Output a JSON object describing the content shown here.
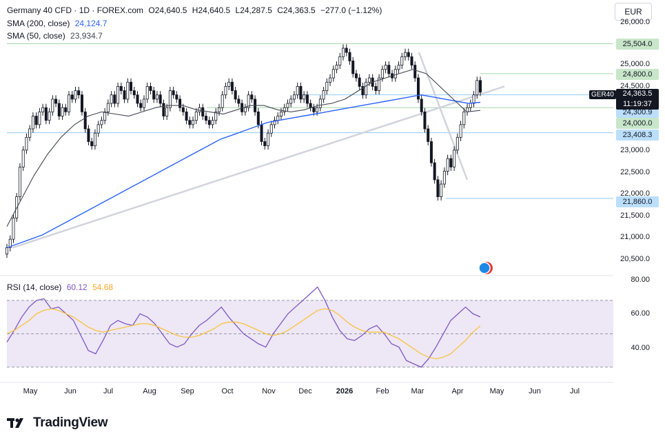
{
  "header": {
    "symbol_line": "Germany 40 CFD · 1D · FOREX.com",
    "open": "O24,640.5",
    "high": "H24,640.5",
    "low": "L24,287.5",
    "close": "C24,363.5",
    "change": "−277.0 (−1.12%)"
  },
  "indicators": {
    "sma200_label": "SMA (200, close)",
    "sma200_value": "24,124.7",
    "sma50_label": "SMA (50, close)",
    "sma50_value": "23,934.7",
    "rsi_label": "RSI (14, close)",
    "rsi_value": "60.12",
    "rsi_ma_value": "54.68"
  },
  "currency_button": "EUR",
  "price_axis": {
    "ticks": [
      "26,000.0",
      "25,000.0",
      "24,500.0",
      "23,000.0",
      "22,500.0",
      "22,000.0",
      "21,500.0",
      "21,000.0",
      "20,500.0"
    ],
    "levels": [
      {
        "label": "25,504.0",
        "color": "#c8e6c9"
      },
      {
        "label": "24,800.0",
        "color": "#c8e6c9"
      },
      {
        "label": "24,300.9",
        "color": "#bbdefb"
      },
      {
        "label": "24,000.0",
        "color": "#c8e6c9"
      },
      {
        "label": "23,408.3",
        "color": "#bbdefb"
      },
      {
        "label": "21,860.0",
        "color": "#bbdefb"
      }
    ],
    "instrument_tag": "GER40",
    "current_price": "24,363.5",
    "countdown": "11:19:37"
  },
  "rsi_axis": {
    "ticks": [
      "80.00",
      "60.00",
      "40.00"
    ]
  },
  "time_axis": {
    "labels": [
      {
        "text": "May",
        "bold": false
      },
      {
        "text": "Jun",
        "bold": false
      },
      {
        "text": "Jul",
        "bold": false
      },
      {
        "text": "Aug",
        "bold": false
      },
      {
        "text": "Sep",
        "bold": false
      },
      {
        "text": "Oct",
        "bold": false
      },
      {
        "text": "Nov",
        "bold": false
      },
      {
        "text": "Dec",
        "bold": false
      },
      {
        "text": "2026",
        "bold": true
      },
      {
        "text": "Feb",
        "bold": false
      },
      {
        "text": "Mar",
        "bold": false
      },
      {
        "text": "Apr",
        "bold": false
      },
      {
        "text": "May",
        "bold": false
      },
      {
        "text": "Jun",
        "bold": false
      },
      {
        "text": "Jul",
        "bold": false
      }
    ]
  },
  "brand": "TradingView",
  "colors": {
    "sma200": "#2962ff",
    "sma50": "#434651",
    "rsi": "#7e57c2",
    "rsi_ma": "#fbc02d",
    "rsi_band": "#ede7f6",
    "trendline": "#d1d4dc",
    "candle": "#131722"
  },
  "chart_data": {
    "type": "candlestick",
    "price_ylim": [
      20400,
      26000
    ],
    "rsi_ylim": [
      25,
      82
    ],
    "rsi_levels": [
      70,
      50,
      30
    ],
    "horizontal_levels": [
      25504.0,
      24800.0,
      24300.9,
      24000.0,
      23408.3,
      21860.0
    ],
    "close": [
      20700,
      20900,
      21400,
      21900,
      22600,
      23000,
      23300,
      23500,
      23800,
      23600,
      23900,
      24000,
      23700,
      23900,
      24200,
      24100,
      23800,
      24000,
      23900,
      24300,
      24200,
      24400,
      24300,
      23900,
      23500,
      23200,
      23100,
      23400,
      23600,
      23700,
      23900,
      24100,
      24300,
      24100,
      24500,
      24400,
      24200,
      24600,
      24400,
      24300,
      24100,
      24000,
      24200,
      24500,
      24400,
      24200,
      24300,
      24100,
      23800,
      24000,
      24400,
      24300,
      24200,
      24000,
      23900,
      23700,
      23600,
      23700,
      23900,
      24000,
      23800,
      23700,
      23600,
      23700,
      23900,
      24000,
      24300,
      24500,
      24600,
      24400,
      24200,
      24100,
      23900,
      24000,
      24300,
      24200,
      23900,
      23600,
      23200,
      23100,
      23400,
      23600,
      23700,
      23800,
      23900,
      24000,
      24100,
      24200,
      24300,
      24500,
      24200,
      24300,
      24100,
      24000,
      23900,
      24000,
      24200,
      24400,
      24600,
      24700,
      24900,
      25000,
      25200,
      25400,
      25300,
      25100,
      24800,
      24700,
      24500,
      24300,
      24600,
      24700,
      24500,
      24400,
      24700,
      24900,
      25000,
      24800,
      24700,
      24900,
      25000,
      25200,
      25300,
      25200,
      25000,
      24700,
      24200,
      23900,
      23500,
      23200,
      22700,
      22300,
      21900,
      22200,
      22500,
      22800,
      22600,
      23000,
      23300,
      23600,
      23900,
      24000,
      24100,
      24300,
      24640,
      24363.5
    ],
    "sma200": [
      20700,
      20800,
      20900,
      21000,
      21150,
      21300,
      21450,
      21600,
      21750,
      21900,
      22050,
      22200,
      22350,
      22500,
      22650,
      22800,
      22950,
      23100,
      23250,
      23350,
      23450,
      23550,
      23650,
      23700,
      23750,
      23800,
      23850,
      23900,
      23950,
      24000,
      24050,
      24100,
      24150,
      24200,
      24250,
      24300,
      24250,
      24200,
      24150,
      24100,
      24124.7
    ],
    "sma50": [
      21200,
      21800,
      22400,
      22900,
      23300,
      23600,
      23800,
      23900,
      23850,
      23800,
      23900,
      24000,
      24050,
      24050,
      23950,
      23900,
      23850,
      23950,
      24050,
      24050,
      23950,
      23900,
      23950,
      24050,
      24100,
      24200,
      24400,
      24600,
      24700,
      24800,
      24900,
      24800,
      24500,
      24200,
      23900,
      23934.7
    ],
    "rsi": [
      45,
      52,
      60,
      66,
      70,
      71,
      65,
      66,
      62,
      58,
      49,
      40,
      38,
      46,
      55,
      58,
      56,
      55,
      62,
      60,
      56,
      50,
      44,
      42,
      44,
      50,
      55,
      58,
      62,
      66,
      60,
      55,
      50,
      47,
      44,
      42,
      50,
      56,
      62,
      66,
      70,
      74,
      78,
      70,
      60,
      52,
      47,
      46,
      49,
      53,
      55,
      50,
      44,
      42,
      34,
      32,
      30,
      35,
      42,
      50,
      58,
      62,
      66,
      62,
      60.12
    ],
    "rsi_ma": [
      50,
      52,
      55,
      58,
      62,
      64,
      65,
      64,
      62,
      60,
      57,
      54,
      52,
      51,
      52,
      53,
      54,
      55,
      56,
      56,
      55,
      53,
      51,
      49,
      48,
      48,
      49,
      51,
      53,
      56,
      57,
      57,
      56,
      54,
      52,
      50,
      49,
      50,
      52,
      55,
      58,
      61,
      64,
      65,
      64,
      61,
      57,
      54,
      52,
      51,
      51,
      51,
      49,
      47,
      44,
      41,
      38,
      36,
      35,
      36,
      38,
      42,
      46,
      51,
      54.68
    ]
  }
}
